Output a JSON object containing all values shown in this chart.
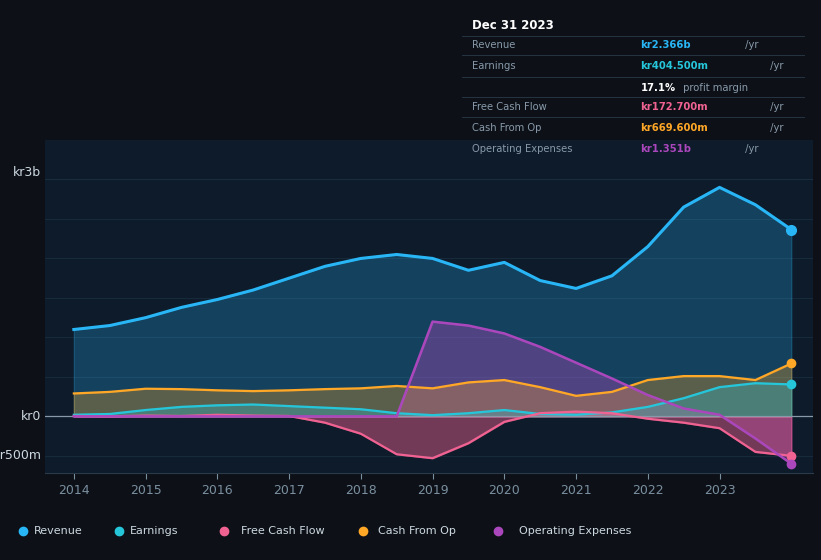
{
  "bg_color": "#0d1117",
  "plot_bg_color": "#0d1b2a",
  "years": [
    2014,
    2014.5,
    2015,
    2015.5,
    2016,
    2016.5,
    2017,
    2017.5,
    2018,
    2018.5,
    2019,
    2019.5,
    2020,
    2020.5,
    2021,
    2021.5,
    2022,
    2022.5,
    2023,
    2023.5,
    2024.0
  ],
  "revenue": [
    1100,
    1150,
    1250,
    1380,
    1480,
    1600,
    1750,
    1900,
    2000,
    2050,
    2000,
    1850,
    1950,
    1720,
    1620,
    1780,
    2150,
    2650,
    2900,
    2680,
    2366
  ],
  "earnings": [
    20,
    30,
    80,
    120,
    140,
    150,
    130,
    110,
    90,
    40,
    15,
    40,
    80,
    30,
    20,
    50,
    120,
    230,
    370,
    420,
    404.5
  ],
  "free_cash_flow": [
    5,
    0,
    10,
    5,
    20,
    10,
    5,
    -80,
    -220,
    -480,
    -530,
    -340,
    -70,
    40,
    60,
    40,
    -30,
    -80,
    -150,
    -450,
    -500
  ],
  "cash_from_op": [
    290,
    310,
    350,
    345,
    330,
    320,
    330,
    345,
    355,
    385,
    355,
    430,
    460,
    370,
    260,
    310,
    460,
    510,
    510,
    460,
    669.6
  ],
  "operating_expenses": [
    0,
    0,
    0,
    0,
    0,
    0,
    0,
    0,
    0,
    0,
    1200,
    1150,
    1050,
    880,
    680,
    480,
    270,
    100,
    20,
    -280,
    -600
  ],
  "revenue_color": "#29b6f6",
  "earnings_color": "#26c6da",
  "free_cash_flow_color": "#f06292",
  "cash_from_op_color": "#ffa726",
  "operating_expenses_color": "#ab47bc",
  "grid_color": "#1a2e40",
  "text_color": "#7a8fa0",
  "table_bg": "#0d1520",
  "table_border": "#2a3a4a",
  "ylim_top": 3500,
  "ylim_bottom": -720,
  "x_ticks": [
    2014,
    2015,
    2016,
    2017,
    2018,
    2019,
    2020,
    2021,
    2022,
    2023
  ],
  "legend_items": [
    "Revenue",
    "Earnings",
    "Free Cash Flow",
    "Cash From Op",
    "Operating Expenses"
  ],
  "legend_colors": [
    "#29b6f6",
    "#26c6da",
    "#f06292",
    "#ffa726",
    "#ab47bc"
  ]
}
